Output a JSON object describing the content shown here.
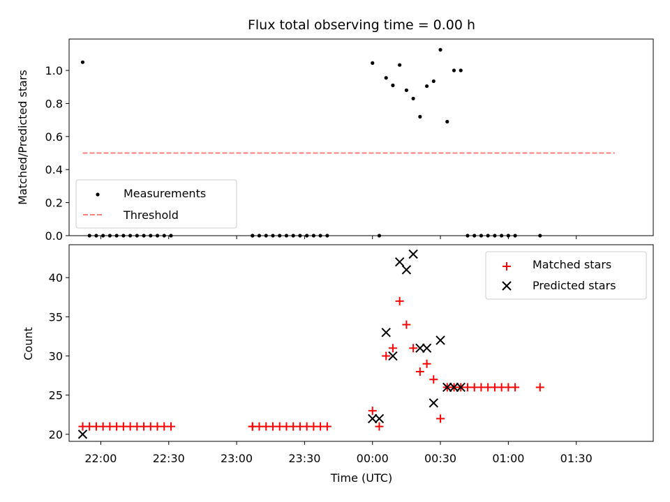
{
  "chart_data": [
    {
      "type": "scatter",
      "title": "Flux total observing time = 0.00 h",
      "ylabel": "Matched/Predicted stars",
      "ylim": [
        0,
        1.19
      ],
      "yticks": [
        0.0,
        0.2,
        0.4,
        0.6,
        0.8,
        1.0
      ],
      "ytick_labels": [
        "0.0",
        "0.2",
        "0.4",
        "0.6",
        "0.8",
        "1.0"
      ],
      "xlim": [
        "21:46",
        "02:04"
      ],
      "x_ticks_shared": true,
      "legend_position": "lower-left",
      "series": [
        {
          "name": "Measurements",
          "color": "#000000",
          "marker": "dot",
          "x": [
            "21:52",
            "21:55",
            "21:58",
            "22:01",
            "22:04",
            "22:07",
            "22:10",
            "22:13",
            "22:16",
            "22:19",
            "22:22",
            "22:25",
            "22:28",
            "22:31",
            "23:07",
            "23:07",
            "23:10",
            "23:13",
            "23:16",
            "23:19",
            "23:22",
            "23:25",
            "23:28",
            "23:31",
            "23:34",
            "23:37",
            "23:40",
            "00:00",
            "00:03",
            "00:06",
            "00:09",
            "00:12",
            "00:15",
            "00:18",
            "00:21",
            "00:24",
            "00:27",
            "00:30",
            "00:33",
            "00:36",
            "00:39",
            "00:42",
            "00:45",
            "00:48",
            "00:51",
            "00:54",
            "00:57",
            "01:00",
            "01:03",
            "01:14"
          ],
          "y": [
            1.05,
            0.0,
            0.0,
            0.0,
            0.0,
            0.0,
            0.0,
            0.0,
            0.0,
            0.0,
            0.0,
            0.0,
            0.0,
            0.0,
            0.0,
            0.0,
            0.0,
            0.0,
            0.0,
            0.0,
            0.0,
            0.0,
            0.0,
            0.0,
            0.0,
            0.0,
            0.0,
            1.045,
            0.0,
            0.955,
            0.91,
            1.033,
            0.88,
            0.83,
            0.72,
            0.905,
            0.935,
            1.125,
            0.69,
            1.0,
            1.0,
            0.0,
            0.0,
            0.0,
            0.0,
            0.0,
            0.0,
            0.0,
            0.0,
            0.0
          ]
        },
        {
          "name": "Threshold",
          "color": "#ff7f7f",
          "style": "dashed",
          "x": [
            "21:52",
            "01:47"
          ],
          "y": [
            0.5,
            0.5
          ]
        }
      ]
    },
    {
      "type": "scatter",
      "ylabel": "Count",
      "xlabel": "Time (UTC)",
      "ylim": [
        19.1,
        44.2
      ],
      "yticks": [
        20,
        25,
        30,
        35,
        40
      ],
      "ytick_labels": [
        "20",
        "25",
        "30",
        "35",
        "40"
      ],
      "xlim": [
        "21:46",
        "02:04"
      ],
      "xticks": [
        "22:00",
        "22:30",
        "23:00",
        "23:30",
        "00:00",
        "00:30",
        "01:00",
        "01:30"
      ],
      "xtick_labels": [
        "22:00",
        "22:30",
        "23:00",
        "23:30",
        "00:00",
        "00:30",
        "01:00",
        "01:30"
      ],
      "legend_position": "upper-right",
      "series": [
        {
          "name": "Matched stars",
          "color": "#ff0000",
          "marker": "plus",
          "x": [
            "21:52",
            "21:55",
            "21:58",
            "22:01",
            "22:04",
            "22:07",
            "22:10",
            "22:13",
            "22:16",
            "22:19",
            "22:22",
            "22:25",
            "22:28",
            "22:31",
            "23:07",
            "23:07",
            "23:10",
            "23:13",
            "23:16",
            "23:19",
            "23:22",
            "23:25",
            "23:28",
            "23:31",
            "23:34",
            "23:37",
            "23:40",
            "00:00",
            "00:03",
            "00:06",
            "00:09",
            "00:12",
            "00:15",
            "00:18",
            "00:21",
            "00:24",
            "00:27",
            "00:30",
            "00:33",
            "00:36",
            "00:39",
            "00:42",
            "00:45",
            "00:48",
            "00:51",
            "00:54",
            "00:57",
            "01:00",
            "01:03",
            "01:14"
          ],
          "y": [
            21,
            21,
            21,
            21,
            21,
            21,
            21,
            21,
            21,
            21,
            21,
            21,
            21,
            21,
            21,
            21,
            21,
            21,
            21,
            21,
            21,
            21,
            21,
            21,
            21,
            21,
            21,
            23,
            21,
            30,
            31,
            37,
            34,
            31,
            28,
            29,
            27,
            22,
            26,
            26,
            26,
            26,
            26,
            26,
            26,
            26,
            26,
            26,
            26,
            26
          ]
        },
        {
          "name": "Predicted stars",
          "color": "#000000",
          "marker": "x",
          "x": [
            "21:52",
            "00:00",
            "00:03",
            "00:06",
            "00:09",
            "00:12",
            "00:15",
            "00:18",
            "00:21",
            "00:24",
            "00:27",
            "00:30",
            "00:33",
            "00:36",
            "00:39"
          ],
          "y": [
            20,
            22,
            22,
            33,
            30,
            42,
            41,
            43,
            31,
            31,
            24,
            32,
            26,
            26,
            26
          ]
        }
      ]
    }
  ]
}
